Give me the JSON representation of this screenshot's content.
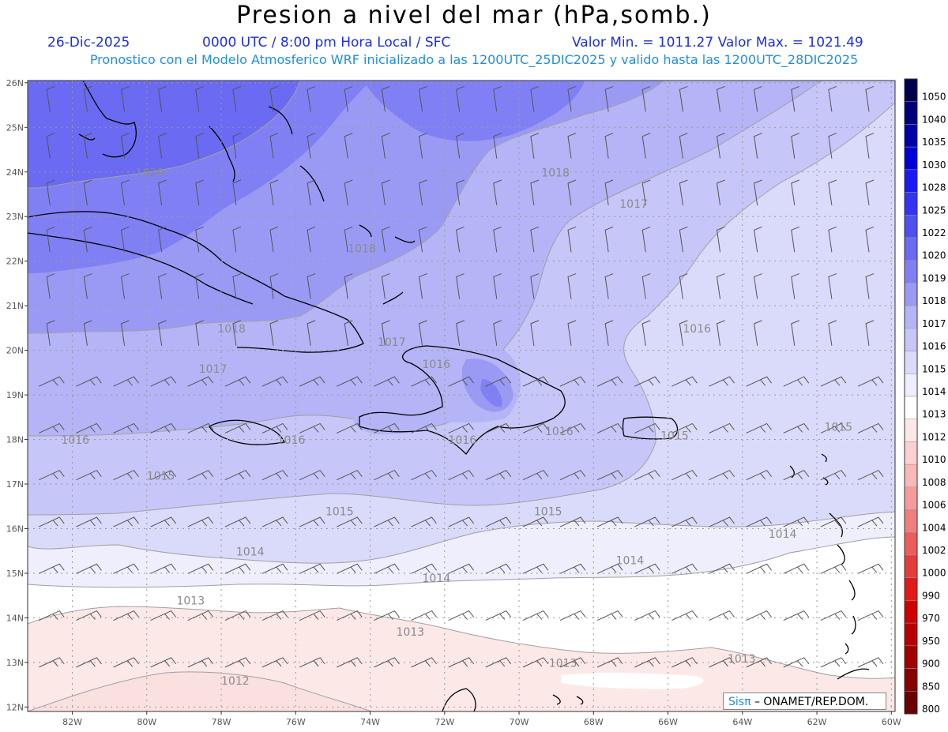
{
  "header": {
    "title": "Presion a nivel del mar (hPa,somb.)",
    "date": "26-Dic-2025",
    "time_info": "0000 UTC / 8:00 pm Hora Local / SFC",
    "min_max": "Valor Min. = 1011.27  Valor Max. = 1021.49",
    "model_info": "Pronostico con el Modelo Atmosferico WRF inicializado a las 1200UTC_25DIC2025 y valido hasta las  1200UTC_28DIC2025"
  },
  "map": {
    "lat_labels": [
      "26N",
      "25N",
      "24N",
      "23N",
      "22N",
      "21N",
      "20N",
      "19N",
      "18N",
      "17N",
      "16N",
      "15N",
      "14N",
      "13N",
      "12N"
    ],
    "lon_labels": [
      "82W",
      "80W",
      "78W",
      "76W",
      "74W",
      "72W",
      "70W",
      "68W",
      "66W",
      "64W",
      "62W",
      "60W"
    ],
    "contour_labels": [
      {
        "text": "1020",
        "lon": -80.3,
        "lat": 23.9
      },
      {
        "text": "1018",
        "lon": -69.4,
        "lat": 23.9
      },
      {
        "text": "1017",
        "lon": -67.3,
        "lat": 23.2
      },
      {
        "text": "1018",
        "lon": -74.6,
        "lat": 22.2
      },
      {
        "text": "1018",
        "lon": -78.1,
        "lat": 20.4
      },
      {
        "text": "1017",
        "lon": -73.8,
        "lat": 20.1
      },
      {
        "text": "1017",
        "lon": -78.6,
        "lat": 19.5
      },
      {
        "text": "1016",
        "lon": -65.6,
        "lat": 20.4
      },
      {
        "text": "1016",
        "lon": -72.6,
        "lat": 19.6
      },
      {
        "text": "1016",
        "lon": -82.3,
        "lat": 17.9
      },
      {
        "text": "1016",
        "lon": -76.5,
        "lat": 17.9
      },
      {
        "text": "1016",
        "lon": -71.9,
        "lat": 17.9
      },
      {
        "text": "1016",
        "lon": -69.3,
        "lat": 18.1
      },
      {
        "text": "1015",
        "lon": -66.2,
        "lat": 18.0
      },
      {
        "text": "1015",
        "lon": -61.8,
        "lat": 18.2
      },
      {
        "text": "1015",
        "lon": -80.0,
        "lat": 17.1
      },
      {
        "text": "1015",
        "lon": -75.2,
        "lat": 16.3
      },
      {
        "text": "1015",
        "lon": -69.6,
        "lat": 16.3
      },
      {
        "text": "1014",
        "lon": -77.6,
        "lat": 15.4
      },
      {
        "text": "1014",
        "lon": -63.3,
        "lat": 15.8
      },
      {
        "text": "1014",
        "lon": -67.4,
        "lat": 15.2
      },
      {
        "text": "1014",
        "lon": -72.6,
        "lat": 14.8
      },
      {
        "text": "1013",
        "lon": -79.2,
        "lat": 14.3
      },
      {
        "text": "1013",
        "lon": -73.3,
        "lat": 13.6
      },
      {
        "text": "1013",
        "lon": -69.2,
        "lat": 12.9
      },
      {
        "text": "1013",
        "lon": -64.4,
        "lat": 13.0
      },
      {
        "text": "1012",
        "lon": -78.0,
        "lat": 12.5
      }
    ]
  },
  "legend": {
    "levels": [
      {
        "label": "1050",
        "color": "#000050"
      },
      {
        "label": "1040",
        "color": "#00007a"
      },
      {
        "label": "1035",
        "color": "#0000a8"
      },
      {
        "label": "1030",
        "color": "#0000d8"
      },
      {
        "label": "1028",
        "color": "#1a1af5"
      },
      {
        "label": "1025",
        "color": "#3434f3"
      },
      {
        "label": "1022",
        "color": "#4f4ff2"
      },
      {
        "label": "1020",
        "color": "#6a6af2"
      },
      {
        "label": "1019",
        "color": "#8080f4"
      },
      {
        "label": "1018",
        "color": "#9a9af5"
      },
      {
        "label": "1017",
        "color": "#b4b4f6"
      },
      {
        "label": "1016",
        "color": "#c6c6f8"
      },
      {
        "label": "1015",
        "color": "#dadafb"
      },
      {
        "label": "1014",
        "color": "#eeeefd"
      },
      {
        "label": "1013",
        "color": "#ffffff"
      },
      {
        "label": "1012",
        "color": "#fde8e8"
      },
      {
        "label": "1010",
        "color": "#fbd0d0"
      },
      {
        "label": "1008",
        "color": "#f8b8b8"
      },
      {
        "label": "1006",
        "color": "#f49c9c"
      },
      {
        "label": "1004",
        "color": "#f07e7e"
      },
      {
        "label": "1002",
        "color": "#ec5c5c"
      },
      {
        "label": "1000",
        "color": "#e83c3c"
      },
      {
        "label": "990",
        "color": "#e01a1a"
      },
      {
        "label": "970",
        "color": "#d00000"
      },
      {
        "label": "950",
        "color": "#b80000"
      },
      {
        "label": "900",
        "color": "#a00000"
      },
      {
        "label": "850",
        "color": "#880000"
      },
      {
        "label": "800",
        "color": "#6a0000"
      }
    ]
  },
  "credit": {
    "sis": "Sisπ",
    "text": "– ONAMET/REP.DOM."
  }
}
